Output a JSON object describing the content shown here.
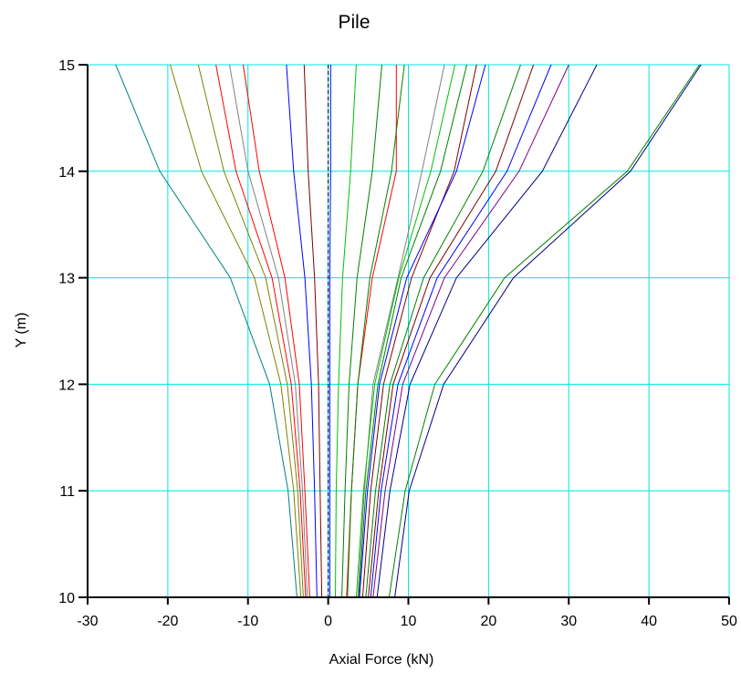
{
  "chart_data": {
    "type": "line",
    "title": "Pile",
    "xlabel": "Axial Force (kN)",
    "ylabel": "Y (m)",
    "xlim": [
      -30,
      50
    ],
    "ylim": [
      10,
      15
    ],
    "xticks": [
      -30,
      -20,
      -10,
      0,
      10,
      20,
      30,
      40,
      50
    ],
    "yticks": [
      10,
      11,
      12,
      13,
      14,
      15
    ],
    "grid": true,
    "grid_color": "#00e5e5",
    "y": [
      15,
      14,
      13,
      12,
      11,
      10
    ],
    "series": [
      {
        "color": "#008080",
        "x": [
          -26.5,
          -21,
          -12.2,
          -7.3,
          -5,
          -3.9
        ]
      },
      {
        "color": "#808000",
        "x": [
          -19.7,
          -15.8,
          -9.2,
          -5.9,
          -4.3,
          -3.4
        ]
      },
      {
        "color": "#808000",
        "x": [
          -16.2,
          -13,
          -7.8,
          -5.1,
          -3.8,
          -3.1
        ]
      },
      {
        "color": "#ff0000",
        "x": [
          -14,
          -11.5,
          -7,
          -4.6,
          -3.5,
          -2.8
        ]
      },
      {
        "color": "#808080",
        "x": [
          -12.3,
          -10,
          -6.2,
          -4.1,
          -3.2,
          -2.6
        ]
      },
      {
        "color": "#ff0000",
        "x": [
          -10.6,
          -8.6,
          -5.4,
          -3.6,
          -2.9,
          -2.3
        ]
      },
      {
        "color": "#0000ff",
        "x": [
          -5.2,
          -4.3,
          -2.9,
          -2.1,
          -1.7,
          -1.4
        ]
      },
      {
        "color": "#800000",
        "x": [
          -3,
          -2.5,
          -1.7,
          -1.2,
          -1,
          -0.8
        ]
      },
      {
        "color": "#0000ff",
        "x": [
          0.3,
          0.3,
          0.2,
          0.2,
          0.2,
          0.2
        ]
      },
      {
        "color": "#00c000",
        "x": [
          3.5,
          2.8,
          1.8,
          1.3,
          1,
          0.9
        ]
      },
      {
        "color": "#008000",
        "x": [
          6.7,
          5.5,
          3.6,
          2.6,
          2.1,
          1.7
        ]
      },
      {
        "color": "#ff0000",
        "x": [
          8.5,
          8.5,
          5.5,
          3.7,
          2.9,
          2.3
        ]
      },
      {
        "color": "#008000",
        "x": [
          9.5,
          7.9,
          5.2,
          3.7,
          2.9,
          2.4
        ]
      },
      {
        "color": "#808080",
        "x": [
          14.5,
          11.7,
          8.7,
          5.6,
          4.5,
          3.7
        ]
      },
      {
        "color": "#00c000",
        "x": [
          15.8,
          12.8,
          8.8,
          5.8,
          4.4,
          3.5
        ]
      },
      {
        "color": "#008000",
        "x": [
          17.3,
          14,
          9.1,
          6.2,
          4.7,
          3.8
        ]
      },
      {
        "color": "#800000",
        "x": [
          18.5,
          15.7,
          10.4,
          6.9,
          5.3,
          4.3
        ]
      },
      {
        "color": "#0000ff",
        "x": [
          19.6,
          16,
          9.8,
          6.4,
          4.9,
          3.9
        ]
      },
      {
        "color": "#008000",
        "x": [
          24,
          19.3,
          11.9,
          7.7,
          5.9,
          4.7
        ]
      },
      {
        "color": "#800000",
        "x": [
          25.6,
          20.9,
          12.7,
          8.1,
          6.3,
          5
        ]
      },
      {
        "color": "#0000ff",
        "x": [
          27.8,
          22.3,
          13.6,
          8.7,
          6.6,
          5.3
        ]
      },
      {
        "color": "#800080",
        "x": [
          30,
          23.8,
          14.5,
          9.3,
          7.1,
          5.6
        ]
      },
      {
        "color": "#000080",
        "x": [
          33.5,
          26.7,
          16,
          10.2,
          7.7,
          6.1
        ]
      },
      {
        "color": "#008000",
        "x": [
          46.3,
          37.3,
          22,
          13.3,
          9.6,
          7.6
        ]
      },
      {
        "color": "#000080",
        "x": [
          46.5,
          37.7,
          23.1,
          14.4,
          10.1,
          8.3
        ]
      }
    ]
  }
}
